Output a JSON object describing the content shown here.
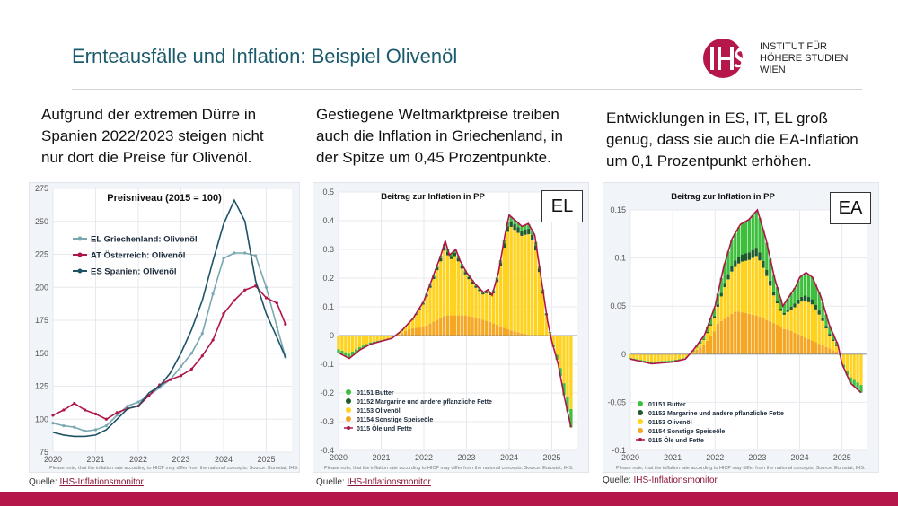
{
  "slide": {
    "title": "Ernteausfälle und Inflation: Beispiel Olivenöl",
    "logo_lines": [
      "INSTITUT FÜR",
      "HÖHERE STUDIEN",
      "WIEN"
    ],
    "columns": [
      {
        "text_lines": [
          "Aufgrund der extremen Dürre in",
          "Spanien 2022/2023 steigen nicht",
          "nur dort die Preise für Olivenöl."
        ]
      },
      {
        "text_lines": [
          "Gestiegene Weltmarktpreise treiben",
          "auch die Inflation in Griechenland, in",
          "der Spitze um 0,45 Prozentpunkte."
        ]
      },
      {
        "text_lines": [
          "Entwicklungen in ES, IT, EL groß",
          "genug, dass sie auch die EA-Inflation",
          "um 0,1 Prozentpunkt erhöhen."
        ]
      }
    ],
    "source_prefix": "Quelle: ",
    "source_link": "IHS-Inflationsmonitor",
    "footnote": "Please note, that the inflation rate according to HICP may differ from the national concepts. Source: Eurostat, IHS.",
    "colors": {
      "title": "#1b5b6b",
      "brand": "#b5174a"
    }
  },
  "chart_data": [
    {
      "type": "line",
      "title": "Preisniveau (2015 = 100)",
      "ylim": [
        75,
        275
      ],
      "yticks": [
        75,
        100,
        125,
        150,
        175,
        200,
        225,
        250,
        275
      ],
      "xlim": [
        2020,
        2025.6
      ],
      "xticks": [
        2020,
        2021,
        2022,
        2023,
        2024,
        2025
      ],
      "legend_position": "top-left",
      "series": [
        {
          "name": "EL Griechenland: Olivenöl",
          "color": "#7aa7b0",
          "marker": "dot",
          "points": [
            [
              2020,
              97
            ],
            [
              2020.25,
              95
            ],
            [
              2020.5,
              94
            ],
            [
              2020.75,
              91
            ],
            [
              2021,
              92
            ],
            [
              2021.25,
              95
            ],
            [
              2021.5,
              103
            ],
            [
              2021.75,
              110
            ],
            [
              2022,
              113
            ],
            [
              2022.25,
              118
            ],
            [
              2022.5,
              124
            ],
            [
              2022.75,
              130
            ],
            [
              2023,
              140
            ],
            [
              2023.25,
              150
            ],
            [
              2023.5,
              165
            ],
            [
              2023.75,
              195
            ],
            [
              2024,
              222
            ],
            [
              2024.25,
              226
            ],
            [
              2024.5,
              226
            ],
            [
              2024.75,
              224
            ],
            [
              2025,
              200
            ],
            [
              2025.25,
              170
            ],
            [
              2025.45,
              147
            ]
          ]
        },
        {
          "name": "AT Österreich: Olivenöl",
          "color": "#b0154a",
          "marker": "dot",
          "points": [
            [
              2020,
              103
            ],
            [
              2020.25,
              107
            ],
            [
              2020.5,
              112
            ],
            [
              2020.75,
              107
            ],
            [
              2021,
              104
            ],
            [
              2021.25,
              100
            ],
            [
              2021.5,
              105
            ],
            [
              2021.75,
              108
            ],
            [
              2022,
              110
            ],
            [
              2022.25,
              118
            ],
            [
              2022.5,
              126
            ],
            [
              2022.75,
              130
            ],
            [
              2023,
              133
            ],
            [
              2023.25,
              138
            ],
            [
              2023.5,
              148
            ],
            [
              2023.75,
              160
            ],
            [
              2024,
              180
            ],
            [
              2024.25,
              190
            ],
            [
              2024.5,
              198
            ],
            [
              2024.75,
              201
            ],
            [
              2025,
              192
            ],
            [
              2025.25,
              188
            ],
            [
              2025.45,
              172
            ]
          ]
        },
        {
          "name": "ES Spanien: Olivenöl",
          "color": "#1e5366",
          "marker": "none",
          "points": [
            [
              2020,
              90
            ],
            [
              2020.25,
              88
            ],
            [
              2020.5,
              87
            ],
            [
              2020.75,
              87
            ],
            [
              2021,
              88
            ],
            [
              2021.25,
              92
            ],
            [
              2021.5,
              100
            ],
            [
              2021.75,
              108
            ],
            [
              2022,
              110
            ],
            [
              2022.25,
              120
            ],
            [
              2022.5,
              125
            ],
            [
              2022.75,
              135
            ],
            [
              2023,
              150
            ],
            [
              2023.25,
              168
            ],
            [
              2023.5,
              190
            ],
            [
              2023.75,
              220
            ],
            [
              2024,
              248
            ],
            [
              2024.25,
              266
            ],
            [
              2024.5,
              250
            ],
            [
              2024.75,
              205
            ],
            [
              2025,
              180
            ],
            [
              2025.25,
              162
            ],
            [
              2025.45,
              147
            ]
          ]
        }
      ]
    },
    {
      "type": "bar",
      "title": "Beitrag zur Inflation in PP",
      "tag": "EL",
      "ylim": [
        -0.4,
        0.5
      ],
      "yticks": [
        -0.4,
        -0.3,
        -0.2,
        -0.1,
        0,
        0.1,
        0.2,
        0.3,
        0.4,
        0.5
      ],
      "ytick_labels": [
        "-0.4",
        "-0.3",
        "-0.2",
        "-0.1",
        "0",
        "0.1",
        "0.2",
        "0.3",
        "0.4",
        "0.5"
      ],
      "xlim": [
        2020,
        2025.6
      ],
      "xticks": [
        2020,
        2021,
        2022,
        2023,
        2024,
        2025
      ],
      "legend_position": "bottom-left",
      "series": [
        {
          "name": "01151 Butter",
          "color": "#3dbe3d",
          "kind": "bar"
        },
        {
          "name": "01152 Margarine und andere pflanzliche Fette",
          "color": "#1e5a2a",
          "kind": "bar"
        },
        {
          "name": "01153 Olivenöl",
          "color": "#ffd21e",
          "kind": "bar"
        },
        {
          "name": "01154 Sonstige Speiseöle",
          "color": "#f5a623",
          "kind": "bar"
        },
        {
          "name": "0115 Öle und Fette",
          "color": "#b0154a",
          "kind": "line"
        }
      ],
      "total_points": [
        [
          2020,
          -0.06
        ],
        [
          2020.25,
          -0.08
        ],
        [
          2020.5,
          -0.05
        ],
        [
          2020.75,
          -0.03
        ],
        [
          2021,
          -0.02
        ],
        [
          2021.25,
          -0.01
        ],
        [
          2021.5,
          0.02
        ],
        [
          2021.75,
          0.06
        ],
        [
          2022,
          0.12
        ],
        [
          2022.2,
          0.2
        ],
        [
          2022.4,
          0.28
        ],
        [
          2022.5,
          0.33
        ],
        [
          2022.6,
          0.28
        ],
        [
          2022.75,
          0.3
        ],
        [
          2022.85,
          0.26
        ],
        [
          2023,
          0.22
        ],
        [
          2023.2,
          0.18
        ],
        [
          2023.4,
          0.15
        ],
        [
          2023.5,
          0.16
        ],
        [
          2023.6,
          0.14
        ],
        [
          2023.75,
          0.22
        ],
        [
          2023.9,
          0.35
        ],
        [
          2024,
          0.42
        ],
        [
          2024.15,
          0.4
        ],
        [
          2024.3,
          0.38
        ],
        [
          2024.45,
          0.39
        ],
        [
          2024.6,
          0.35
        ],
        [
          2024.75,
          0.2
        ],
        [
          2024.9,
          0.05
        ],
        [
          2025,
          -0.02
        ],
        [
          2025.15,
          -0.1
        ],
        [
          2025.3,
          -0.22
        ],
        [
          2025.45,
          -0.32
        ]
      ],
      "oil_share_points": [
        [
          2020,
          -0.03
        ],
        [
          2020.5,
          -0.01
        ],
        [
          2021,
          0
        ],
        [
          2021.5,
          0.02
        ],
        [
          2022,
          0.03
        ],
        [
          2022.5,
          0.07
        ],
        [
          2023,
          0.07
        ],
        [
          2023.5,
          0.05
        ],
        [
          2024,
          0.02
        ],
        [
          2024.5,
          0
        ],
        [
          2025,
          -0.01
        ],
        [
          2025.45,
          -0.02
        ]
      ]
    },
    {
      "type": "bar",
      "title": "Beitrag zur Inflation in PP",
      "tag": "EA",
      "ylim": [
        -0.1,
        0.15
      ],
      "yticks": [
        -0.1,
        -0.05,
        0,
        0.05,
        0.1,
        0.15
      ],
      "ytick_labels": [
        "-0.1",
        "-0.05",
        "0",
        "0.05",
        "0.1",
        "0.15"
      ],
      "xlim": [
        2020,
        2025.6
      ],
      "xticks": [
        2020,
        2021,
        2022,
        2023,
        2024,
        2025
      ],
      "legend_position": "bottom-left",
      "series": [
        {
          "name": "01151 Butter",
          "color": "#3dbe3d",
          "kind": "bar"
        },
        {
          "name": "01152 Margarine und andere pflanzliche Fette",
          "color": "#1e5a2a",
          "kind": "bar"
        },
        {
          "name": "01153 Olivenöl",
          "color": "#ffd21e",
          "kind": "bar"
        },
        {
          "name": "01154 Sonstige Speiseöle",
          "color": "#f5a623",
          "kind": "bar"
        },
        {
          "name": "0115 Öle und Fette",
          "color": "#b0154a",
          "kind": "line"
        }
      ],
      "total_points": [
        [
          2020,
          -0.005
        ],
        [
          2020.5,
          -0.01
        ],
        [
          2021,
          -0.008
        ],
        [
          2021.3,
          -0.005
        ],
        [
          2021.5,
          0.005
        ],
        [
          2021.75,
          0.02
        ],
        [
          2022,
          0.05
        ],
        [
          2022.2,
          0.09
        ],
        [
          2022.4,
          0.12
        ],
        [
          2022.6,
          0.135
        ],
        [
          2022.8,
          0.14
        ],
        [
          2023,
          0.15
        ],
        [
          2023.2,
          0.12
        ],
        [
          2023.4,
          0.08
        ],
        [
          2023.6,
          0.05
        ],
        [
          2023.75,
          0.06
        ],
        [
          2023.9,
          0.07
        ],
        [
          2024,
          0.08
        ],
        [
          2024.15,
          0.085
        ],
        [
          2024.3,
          0.08
        ],
        [
          2024.5,
          0.06
        ],
        [
          2024.7,
          0.03
        ],
        [
          2024.9,
          0.01
        ],
        [
          2025,
          -0.01
        ],
        [
          2025.2,
          -0.03
        ],
        [
          2025.45,
          -0.04
        ]
      ],
      "oil_share_points": [
        [
          2020,
          -0.005
        ],
        [
          2020.5,
          -0.002
        ],
        [
          2021,
          0.003
        ],
        [
          2021.5,
          0.01
        ],
        [
          2022,
          0.03
        ],
        [
          2022.5,
          0.045
        ],
        [
          2023,
          0.04
        ],
        [
          2023.5,
          0.03
        ],
        [
          2024,
          0.02
        ],
        [
          2024.5,
          0.01
        ],
        [
          2025,
          0
        ],
        [
          2025.45,
          -0.005
        ]
      ]
    }
  ]
}
